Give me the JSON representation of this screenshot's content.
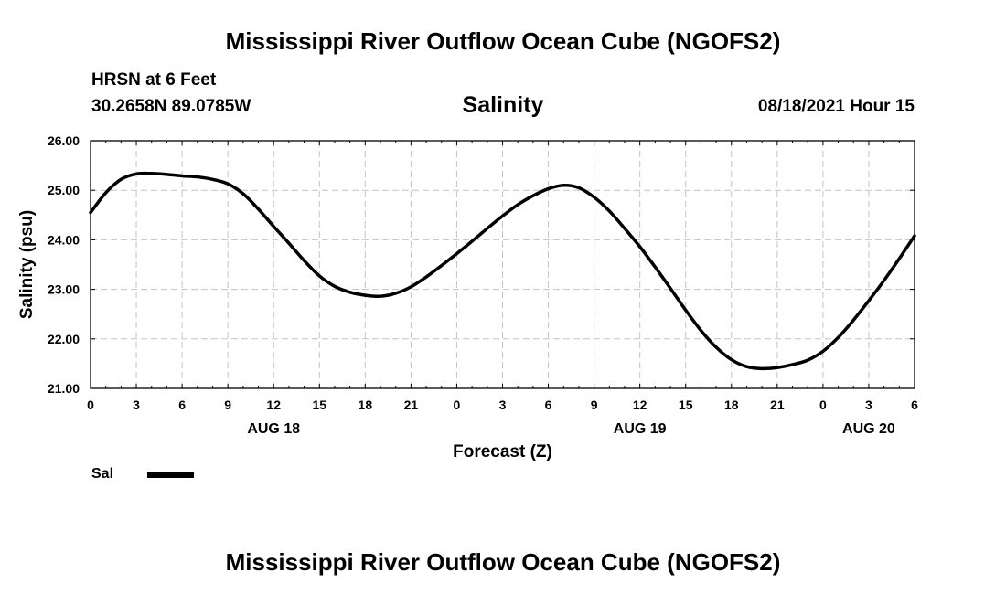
{
  "header": {
    "title": "Mississippi River Outflow Ocean Cube (NGOFS2)",
    "station": "HRSN at 6 Feet",
    "coords": "30.2658N  89.0785W",
    "variable": "Salinity",
    "datetime": "08/18/2021 Hour 15"
  },
  "footer": {
    "title": "Mississippi River Outflow Ocean Cube (NGOFS2)"
  },
  "legend": {
    "label": "Sal",
    "color": "#000000"
  },
  "chart_data": {
    "type": "line",
    "title": "Salinity",
    "xlabel": "Forecast (Z)",
    "ylabel": "Salinity (psu)",
    "xlim": [
      0,
      54
    ],
    "ylim": [
      21.0,
      26.0
    ],
    "grid": true,
    "x_ticks": [
      0,
      3,
      6,
      9,
      12,
      15,
      18,
      21,
      24,
      27,
      30,
      33,
      36,
      39,
      42,
      45,
      48,
      51,
      54
    ],
    "x_tick_labels": [
      "0",
      "3",
      "6",
      "9",
      "12",
      "15",
      "18",
      "21",
      "0",
      "3",
      "6",
      "9",
      "12",
      "15",
      "18",
      "21",
      "0",
      "3",
      "6"
    ],
    "y_ticks": [
      21.0,
      22.0,
      23.0,
      24.0,
      25.0,
      26.0
    ],
    "y_tick_labels": [
      "21.00",
      "22.00",
      "23.00",
      "24.00",
      "25.00",
      "26.00"
    ],
    "date_labels": [
      {
        "x": 12,
        "label": "AUG 18"
      },
      {
        "x": 36,
        "label": "AUG 19"
      },
      {
        "x": 51,
        "label": "AUG 20"
      }
    ],
    "series": [
      {
        "name": "Sal",
        "color": "#000000",
        "x": [
          0,
          1,
          2,
          3,
          4,
          5,
          6,
          7,
          8,
          9,
          10,
          11,
          12,
          13,
          14,
          15,
          16,
          17,
          18,
          19,
          20,
          21,
          22,
          23,
          24,
          25,
          26,
          27,
          28,
          29,
          30,
          31,
          32,
          33,
          34,
          35,
          36,
          37,
          38,
          39,
          40,
          41,
          42,
          43,
          44,
          45,
          46,
          47,
          48,
          49,
          50,
          51,
          52,
          53,
          54
        ],
        "values": [
          24.55,
          24.95,
          25.22,
          25.33,
          25.34,
          25.32,
          25.29,
          25.27,
          25.22,
          25.13,
          24.93,
          24.62,
          24.27,
          23.93,
          23.58,
          23.27,
          23.06,
          22.94,
          22.88,
          22.86,
          22.92,
          23.05,
          23.25,
          23.48,
          23.72,
          23.97,
          24.23,
          24.48,
          24.71,
          24.89,
          25.03,
          25.1,
          25.05,
          24.86,
          24.58,
          24.23,
          23.86,
          23.45,
          23.02,
          22.58,
          22.17,
          21.83,
          21.58,
          21.44,
          21.4,
          21.42,
          21.48,
          21.57,
          21.75,
          22.03,
          22.38,
          22.77,
          23.18,
          23.62,
          24.08
        ]
      }
    ]
  }
}
